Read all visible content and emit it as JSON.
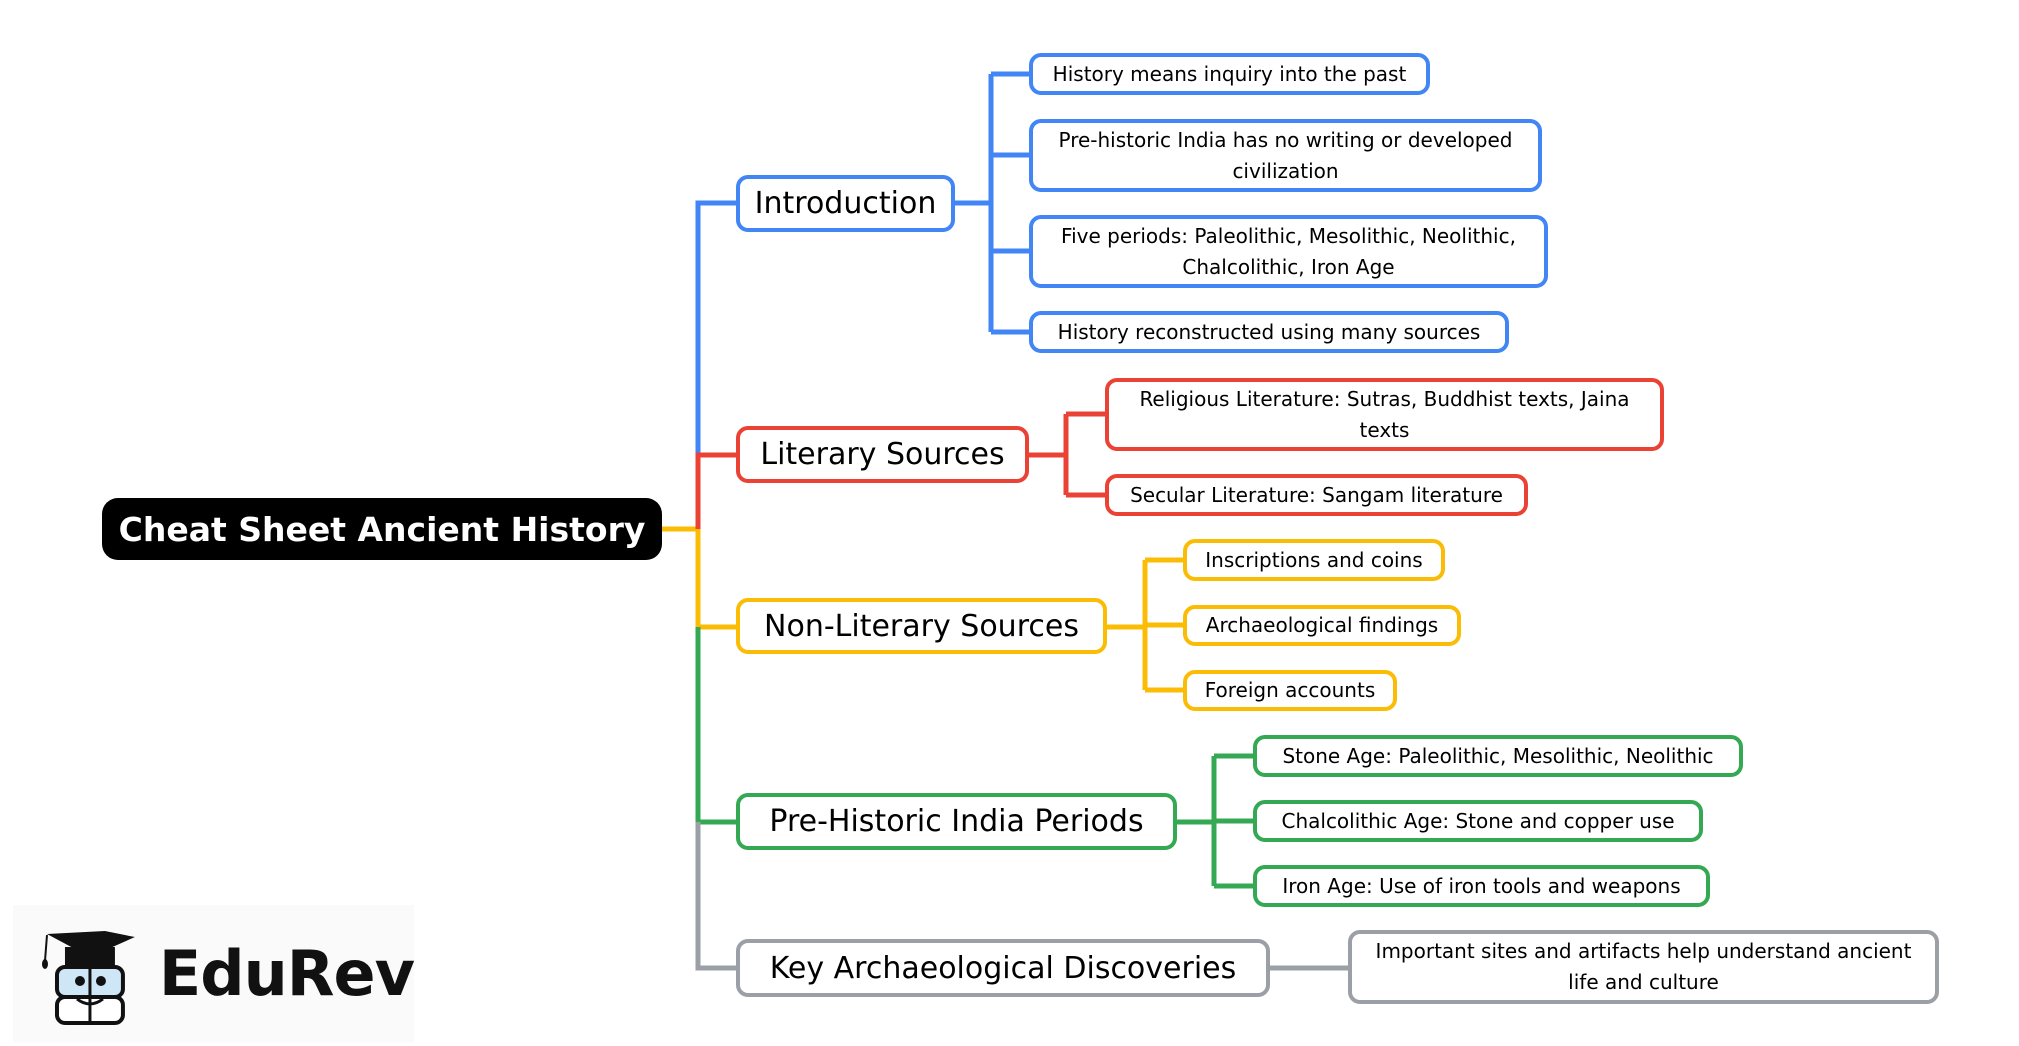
{
  "root": {
    "label": "Cheat Sheet Ancient History"
  },
  "branches": [
    {
      "label": "Introduction",
      "color": "#4285F4",
      "children": [
        "History means inquiry into the past",
        "Pre-historic India has no writing or developed civilization",
        "Five periods: Paleolithic, Mesolithic, Neolithic, Chalcolithic, Iron Age",
        "History reconstructed using many sources"
      ]
    },
    {
      "label": "Literary Sources",
      "color": "#EA4335",
      "children": [
        "Religious Literature: Sutras, Buddhist texts, Jaina texts",
        "Secular Literature: Sangam literature"
      ]
    },
    {
      "label": "Non-Literary Sources",
      "color": "#FBBC05",
      "children": [
        "Inscriptions and coins",
        "Archaeological findings",
        "Foreign accounts"
      ]
    },
    {
      "label": "Pre-Historic India Periods",
      "color": "#34A853",
      "children": [
        "Stone Age: Paleolithic, Mesolithic, Neolithic",
        "Chalcolithic Age: Stone and copper use",
        "Iron Age: Use of iron tools and weapons"
      ]
    },
    {
      "label": "Key Archaeological Discoveries",
      "color": "#9AA0A6",
      "children": [
        "Important sites and artifacts help understand ancient life and culture"
      ]
    }
  ],
  "logo": {
    "text": "EduRev",
    "icon": "graduation-cap-mascot-icon"
  }
}
